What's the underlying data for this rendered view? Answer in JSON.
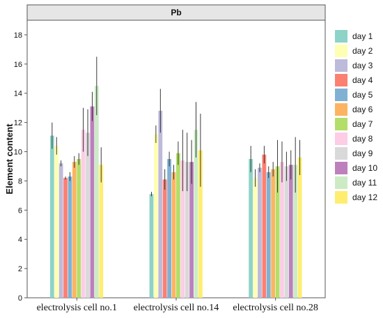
{
  "chart_data": {
    "type": "bar",
    "title": "Pb",
    "xlabel": "",
    "ylabel": "Element content",
    "ylim": [
      0,
      19
    ],
    "yticks": [
      0,
      2,
      4,
      6,
      8,
      10,
      12,
      14,
      16,
      18
    ],
    "grid": false,
    "legend_position": "right",
    "categories": [
      "electrolysis cell no.1",
      "electrolysis cell no.14",
      "electrolysis cell no.28"
    ],
    "series": [
      {
        "name": "day 1",
        "color": "#8dd3c7",
        "values": [
          11.1,
          7.1,
          9.5
        ],
        "errors": [
          0.9,
          0.15,
          0.9
        ]
      },
      {
        "name": "day 2",
        "color": "#ffffb3",
        "values": [
          10.4,
          11.2,
          8.2
        ],
        "errors": [
          0.6,
          0.6,
          0.6
        ]
      },
      {
        "name": "day 3",
        "color": "#bebada",
        "values": [
          9.2,
          12.8,
          8.9
        ],
        "errors": [
          0.2,
          1.5,
          0.3
        ]
      },
      {
        "name": "day 4",
        "color": "#fb8072",
        "values": [
          8.2,
          8.1,
          9.8
        ],
        "errors": [
          0.1,
          0.7,
          0.6
        ]
      },
      {
        "name": "day 5",
        "color": "#80b1d3",
        "values": [
          8.3,
          9.5,
          8.6
        ],
        "errors": [
          0.3,
          0.5,
          0.4
        ]
      },
      {
        "name": "day 6",
        "color": "#fdb462",
        "values": [
          9.3,
          8.6,
          8.8
        ],
        "errors": [
          0.4,
          0.5,
          0.5
        ]
      },
      {
        "name": "day 7",
        "color": "#b3de69",
        "values": [
          9.5,
          9.9,
          9.0
        ],
        "errors": [
          0.4,
          0.8,
          1.8
        ]
      },
      {
        "name": "day 8",
        "color": "#fccde5",
        "values": [
          11.5,
          9.4,
          9.3
        ],
        "errors": [
          1.5,
          2.1,
          1.4
        ]
      },
      {
        "name": "day 9",
        "color": "#d9d9d9",
        "values": [
          11.3,
          9.3,
          9.0
        ],
        "errors": [
          1.6,
          2.0,
          1.0
        ]
      },
      {
        "name": "day 10",
        "color": "#bc80bd",
        "values": [
          13.1,
          9.3,
          9.1
        ],
        "errors": [
          1.0,
          1.5,
          1.0
        ]
      },
      {
        "name": "day 11",
        "color": "#ccebc5",
        "values": [
          14.5,
          11.5,
          9.1
        ],
        "errors": [
          2.0,
          1.9,
          1.9
        ]
      },
      {
        "name": "day 12",
        "color": "#ffed6f",
        "values": [
          9.1,
          10.1,
          9.6
        ],
        "errors": [
          1.2,
          2.5,
          1.2
        ]
      }
    ]
  }
}
